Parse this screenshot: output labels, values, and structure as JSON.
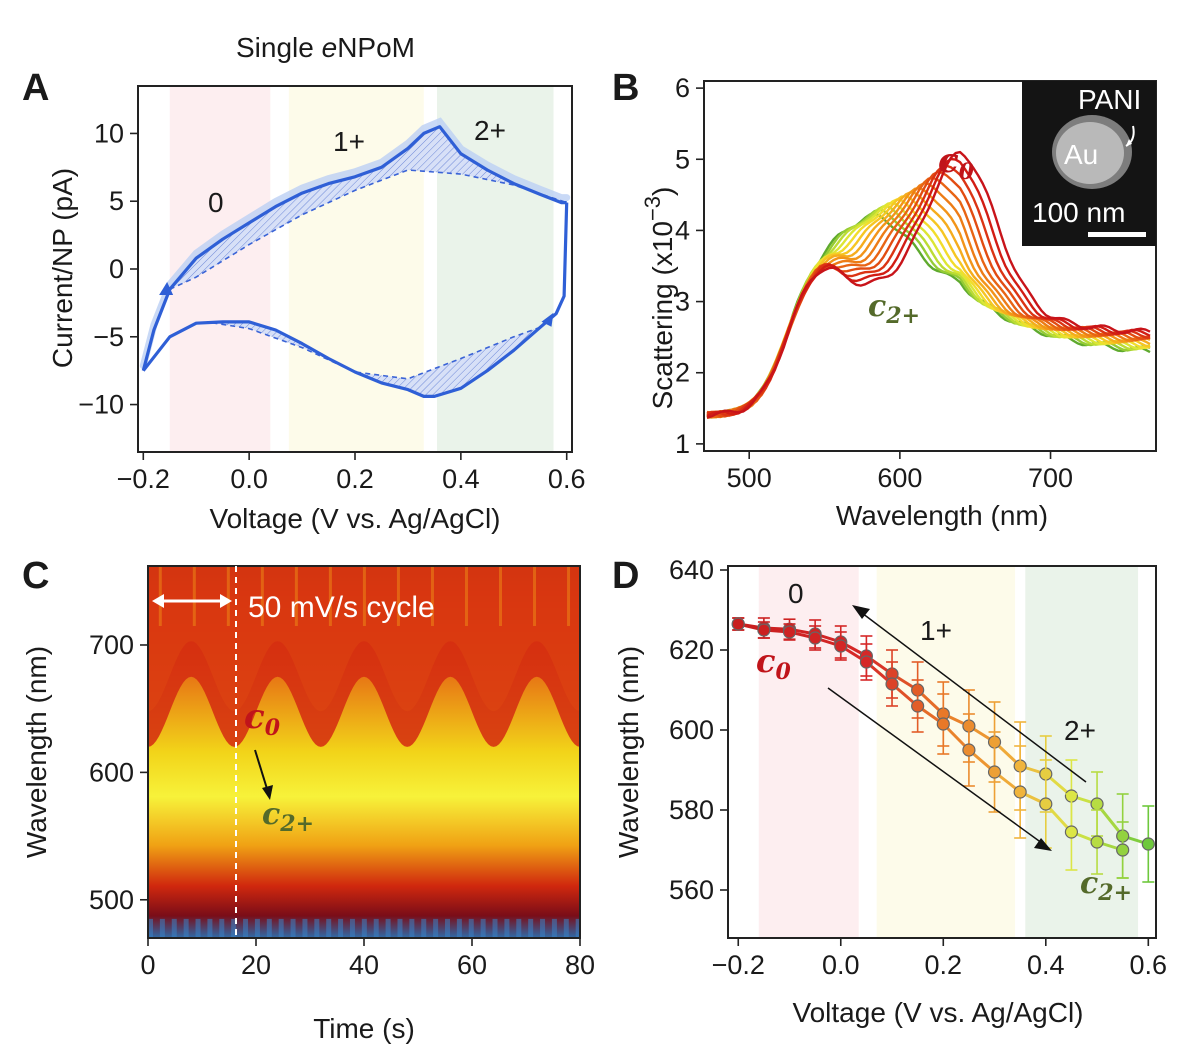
{
  "panels": {
    "a": {
      "label": "A",
      "title_prefix": "Single ",
      "title_italic": "e",
      "title_suffix": "NPoM"
    },
    "b": {
      "label": "B"
    },
    "c": {
      "label": "C"
    },
    "d": {
      "label": "D"
    }
  },
  "colors": {
    "cv_line": "#2f5fd6",
    "band_0": "#fdeef0",
    "band_1": "#fdfbea",
    "band_2": "#eaf3ea",
    "c0": "#c0141a",
    "c2": "#546a2a"
  },
  "chart_data": [
    {
      "type": "line",
      "title": "Single eNPoM",
      "xlabel": "Voltage (V vs. Ag/AgCl)",
      "ylabel": "Current/NP (pA)",
      "xlim": [
        -0.21,
        0.61
      ],
      "ylim": [
        -13.5,
        13.5
      ],
      "xticks": [
        "−0.2",
        "0.0",
        "0.2",
        "0.4",
        "0.6"
      ],
      "xtick_values": [
        -0.2,
        0.0,
        0.2,
        0.4,
        0.6
      ],
      "yticks": [
        "10",
        "5",
        "0",
        "−5",
        "−10"
      ],
      "ytick_values": [
        10,
        5,
        0,
        -5,
        -10
      ],
      "bands": [
        {
          "state": "0",
          "x": [
            -0.15,
            0.04
          ],
          "color": "#fdeef0"
        },
        {
          "state": "1+",
          "x": [
            0.075,
            0.33
          ],
          "color": "#fdfbea"
        },
        {
          "state": "2+",
          "x": [
            0.355,
            0.575
          ],
          "color": "#eaf3ea"
        }
      ],
      "annotations": [
        "0",
        "1+",
        "2+"
      ],
      "series": [
        {
          "name": "forward scan",
          "x": [
            -0.2,
            -0.18,
            -0.15,
            -0.1,
            -0.05,
            0.0,
            0.05,
            0.1,
            0.15,
            0.2,
            0.25,
            0.3,
            0.33,
            0.36,
            0.4,
            0.45,
            0.5,
            0.55,
            0.59,
            0.6
          ],
          "y": [
            -7.5,
            -4.5,
            -1.5,
            0.8,
            2.2,
            3.4,
            4.6,
            5.6,
            6.3,
            6.8,
            7.5,
            8.9,
            10.0,
            10.5,
            8.5,
            7.3,
            6.3,
            5.5,
            4.9,
            4.9
          ]
        },
        {
          "name": "reverse scan",
          "x": [
            0.6,
            0.595,
            0.58,
            0.55,
            0.5,
            0.45,
            0.4,
            0.35,
            0.33,
            0.3,
            0.25,
            0.2,
            0.15,
            0.1,
            0.05,
            0.0,
            -0.05,
            -0.1,
            -0.15,
            -0.2
          ],
          "y": [
            4.9,
            -2.0,
            -3.3,
            -4.3,
            -6.0,
            -7.5,
            -8.8,
            -9.4,
            -9.4,
            -8.9,
            -8.4,
            -7.6,
            -6.6,
            -5.5,
            -4.5,
            -3.9,
            -3.9,
            -4.0,
            -5.0,
            -7.5
          ]
        },
        {
          "name": "capacitive baseline (forward)",
          "x": [
            -0.15,
            -0.1,
            0.0,
            0.1,
            0.2,
            0.3,
            0.4,
            0.5,
            0.6
          ],
          "y": [
            -1.5,
            -0.6,
            1.8,
            4.0,
            5.8,
            7.3,
            7.0,
            6.2,
            4.9
          ]
        },
        {
          "name": "capacitive baseline (reverse)",
          "x": [
            0.55,
            0.5,
            0.4,
            0.3,
            0.2,
            0.1,
            0.0,
            -0.08
          ],
          "y": [
            -4.3,
            -5.0,
            -6.6,
            -8.1,
            -7.6,
            -5.8,
            -4.4,
            -3.9
          ]
        }
      ]
    },
    {
      "type": "line",
      "xlabel": "Wavelength (nm)",
      "ylabel_main": "Scattering (x10",
      "ylabel_exp": "−3",
      "ylabel_close": ")",
      "xlim": [
        470,
        770
      ],
      "ylim": [
        0.9,
        6.1
      ],
      "xticks": [
        "500",
        "600",
        "700"
      ],
      "xtick_values": [
        500,
        600,
        700
      ],
      "yticks": [
        "1",
        "2",
        "3",
        "4",
        "5",
        "6"
      ],
      "ytick_values": [
        1,
        2,
        3,
        4,
        5,
        6
      ],
      "annotations": {
        "c0_base": "c",
        "c0_sub": "0",
        "c2_base": "c",
        "c2_sub": "2+"
      },
      "inset": {
        "core_label": "Au",
        "shell_label": "PANI",
        "scale_label": "100 nm"
      },
      "spectra_model": {
        "count": 14,
        "peak_wavelength_start": 642,
        "peak_wavelength_end": 585,
        "peak_height_start": 5.1,
        "peak_height_end": 3.7,
        "shoulder_wavelength": 548,
        "shoulder_height": 3.45
      },
      "series_colors": [
        "#c8141a",
        "#d21d14",
        "#db3414",
        "#e24c12",
        "#e86414",
        "#ed7c16",
        "#f29419",
        "#f5ac1d",
        "#f6c623",
        "#f2dd2c",
        "#dce634",
        "#bcdc34",
        "#95cc34",
        "#5faa2e"
      ]
    },
    {
      "type": "heatmap",
      "xlabel": "Time (s)",
      "ylabel": "Wavelength (nm)",
      "xlim": [
        0,
        80
      ],
      "ylim": [
        470,
        762
      ],
      "xticks": [
        "0",
        "20",
        "40",
        "60",
        "80"
      ],
      "xtick_values": [
        0,
        20,
        40,
        60,
        80
      ],
      "yticks": [
        "700",
        "600",
        "500"
      ],
      "ytick_values": [
        700,
        600,
        500
      ],
      "cycle_period_s": 16,
      "peak_wavelength_range": [
        575,
        640
      ],
      "annotations": {
        "cycle": "50 mV/s cycle",
        "c0_base": "c",
        "c0_sub": "0",
        "c2_base": "c",
        "c2_sub": "2+"
      }
    },
    {
      "type": "scatter",
      "xlabel": "Voltage (V vs. Ag/AgCl)",
      "ylabel": "Wavelength (nm)",
      "xlim": [
        -0.22,
        0.615
      ],
      "ylim": [
        548,
        641
      ],
      "xticks": [
        "−0.2",
        "0.0",
        "0.2",
        "0.4",
        "0.6"
      ],
      "xtick_values": [
        -0.2,
        0.0,
        0.2,
        0.4,
        0.6
      ],
      "yticks": [
        "640",
        "620",
        "600",
        "580",
        "560"
      ],
      "ytick_values": [
        640,
        620,
        600,
        580,
        560
      ],
      "bands": [
        {
          "state": "0",
          "x": [
            -0.16,
            0.035
          ],
          "color": "#fdeef0"
        },
        {
          "state": "1+",
          "x": [
            0.07,
            0.34
          ],
          "color": "#fdfbea"
        },
        {
          "state": "2+",
          "x": [
            0.36,
            0.58
          ],
          "color": "#eaf3ea"
        }
      ],
      "annotations": {
        "0": "0",
        "1": "1+",
        "2": "2+",
        "c0_base": "c",
        "c0_sub": "0",
        "c2_base": "c",
        "c2_sub": "2+"
      },
      "series": [
        {
          "name": "reverse scan",
          "x": [
            -0.2,
            -0.15,
            -0.1,
            -0.05,
            0.0,
            0.05,
            0.1,
            0.15,
            0.2,
            0.25,
            0.3,
            0.35,
            0.4,
            0.45,
            0.5,
            0.55,
            0.6
          ],
          "y": [
            626.5,
            625.5,
            625.2,
            624.0,
            622.0,
            618.5,
            614.0,
            610.0,
            604.0,
            601.0,
            597.0,
            591.0,
            589.0,
            583.5,
            581.5,
            573.5,
            571.5
          ],
          "err": [
            1.5,
            2.5,
            2.5,
            3.5,
            4.0,
            5.0,
            6.0,
            7.0,
            8.0,
            9.0,
            10.0,
            11.0,
            9.5,
            9.0,
            8.0,
            10.5,
            9.5
          ]
        },
        {
          "name": "forward scan",
          "x": [
            -0.2,
            -0.15,
            -0.1,
            -0.05,
            0.0,
            0.05,
            0.1,
            0.15,
            0.2,
            0.25,
            0.3,
            0.35,
            0.4,
            0.45,
            0.5,
            0.55
          ],
          "y": [
            626.5,
            625.0,
            624.5,
            623.0,
            621.0,
            617.0,
            611.5,
            606.0,
            601.5,
            595.0,
            589.5,
            584.5,
            581.5,
            574.5,
            572.0,
            570.0
          ],
          "err": [
            1.5,
            2.0,
            2.0,
            3.0,
            3.5,
            4.5,
            5.5,
            6.5,
            7.5,
            9.0,
            10.0,
            11.5,
            11.0,
            9.5,
            8.0,
            7.0
          ]
        }
      ]
    }
  ]
}
